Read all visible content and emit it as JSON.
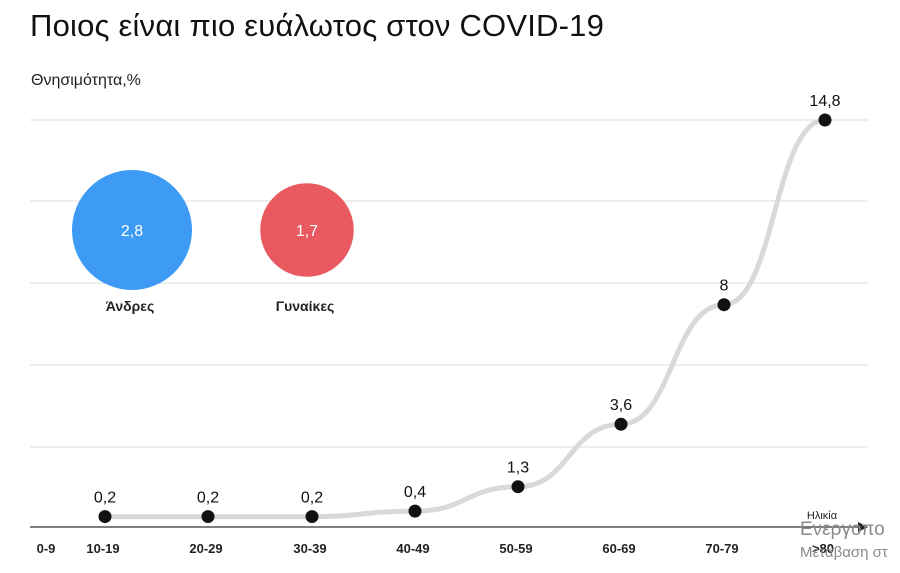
{
  "title": "Ποιος είναι πιο ευάλωτος στον COVID-19",
  "chart_data": {
    "type": "line",
    "ylabel": "Θνησιμότητα,%",
    "xlabel": "Ηλικία",
    "categories": [
      "0-9",
      "10-19",
      "20-29",
      "30-39",
      "40-49",
      "50-59",
      "60-69",
      "70-79",
      ">80"
    ],
    "series": [
      {
        "values": [
          null,
          0.2,
          0.2,
          0.2,
          0.4,
          1.3,
          3.6,
          8,
          14.8
        ],
        "labels": [
          null,
          "0,2",
          "0,2",
          "0,2",
          "0,4",
          "1,3",
          "3,6",
          "8",
          "14,8"
        ]
      }
    ],
    "ylim": [
      0,
      15
    ],
    "grid": true,
    "bubbles": [
      {
        "name": "Άνδρες",
        "value": 2.8,
        "label": "2,8",
        "color": "#3d9bf5"
      },
      {
        "name": "Γυναίκες",
        "value": 1.7,
        "label": "1,7",
        "color": "#e95a60"
      }
    ],
    "colors": {
      "line": "#d9d9d9",
      "point": "#111111",
      "grid": "#e3e3e3",
      "axis": "#555555"
    }
  },
  "watermark": {
    "line1": "Ενεργοπο",
    "line2": "Μετάβαση στ"
  }
}
